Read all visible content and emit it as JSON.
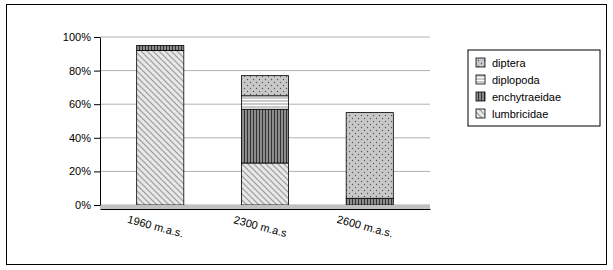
{
  "chart_data": {
    "type": "bar",
    "stacked": true,
    "grid": true,
    "legend": "right",
    "categories": [
      "1960 m.a.s.",
      "2300 m.a.s",
      "2600 m.a.s."
    ],
    "series": [
      {
        "name": "lumbricidae",
        "color": "#e8e8e8",
        "values": [
          92,
          25,
          0
        ]
      },
      {
        "name": "enchytraeidae",
        "color": "#8c8c8c",
        "values": [
          3,
          32,
          4
        ]
      },
      {
        "name": "diplopoda",
        "color": "#ffffff",
        "values": [
          0,
          8,
          0
        ]
      },
      {
        "name": "diptera",
        "color": "#c8c8c8",
        "values": [
          0,
          12,
          51
        ]
      }
    ],
    "ylim": [
      0,
      100
    ],
    "yticks": [
      {
        "value": 0,
        "label": "0%"
      },
      {
        "value": 20,
        "label": "20%"
      },
      {
        "value": 40,
        "label": "40%"
      },
      {
        "value": 60,
        "label": "60%"
      },
      {
        "value": 80,
        "label": "80%"
      },
      {
        "value": 100,
        "label": "100%"
      }
    ]
  }
}
